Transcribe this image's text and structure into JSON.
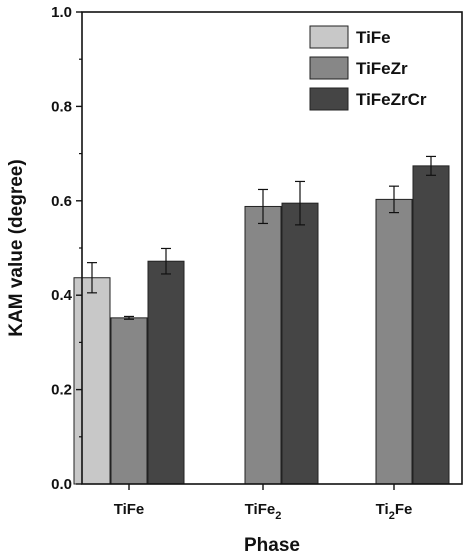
{
  "chart_data": {
    "type": "bar",
    "title": "",
    "xlabel": "Phase",
    "ylabel": "KAM value (degree)",
    "ylim": [
      0.0,
      1.0
    ],
    "yticks": [
      "0.0",
      "0.2",
      "0.4",
      "0.6",
      "0.8",
      "1.0"
    ],
    "grid": false,
    "legend_position": "top-right",
    "categories": [
      {
        "label": "TiFe",
        "base": "TiFe",
        "sub": ""
      },
      {
        "label": "TiFe2",
        "base": "TiFe",
        "sub": "2"
      },
      {
        "label": "Ti2Fe",
        "base": "Ti",
        "sub": "2",
        "tail": "Fe"
      }
    ],
    "series": [
      {
        "name": "TiFe",
        "color": "#c8c8c8",
        "values": [
          0.437,
          null,
          null
        ],
        "errors": [
          0.032,
          null,
          null
        ]
      },
      {
        "name": "TiFeZr",
        "color": "#878787",
        "values": [
          0.352,
          0.588,
          0.603
        ],
        "errors": [
          0.003,
          0.036,
          0.028
        ]
      },
      {
        "name": "TiFeZrCr",
        "color": "#454545",
        "values": [
          0.472,
          0.595,
          0.674
        ],
        "errors": [
          0.027,
          0.046,
          0.02
        ]
      }
    ]
  }
}
